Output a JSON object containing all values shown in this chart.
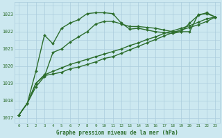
{
  "title": "Graphe pression niveau de la mer (hPa)",
  "background_color": "#cce8f0",
  "grid_color": "#aaccdd",
  "line_color": "#2d6e2d",
  "xlim": [
    -0.5,
    23.5
  ],
  "ylim": [
    1016.7,
    1023.7
  ],
  "yticks": [
    1017,
    1018,
    1019,
    1020,
    1021,
    1022,
    1023
  ],
  "xticks": [
    0,
    1,
    2,
    3,
    4,
    5,
    6,
    7,
    8,
    9,
    10,
    11,
    12,
    13,
    14,
    15,
    16,
    17,
    18,
    19,
    20,
    21,
    22,
    23
  ],
  "series": [
    {
      "x": [
        0,
        1,
        2,
        3,
        4,
        5,
        6,
        7,
        8,
        9,
        10,
        11,
        12,
        13,
        14,
        15,
        16,
        17,
        18,
        19,
        20,
        21,
        22,
        23
      ],
      "y": [
        1017.15,
        1017.85,
        1019.7,
        1021.8,
        1021.3,
        1022.2,
        1022.5,
        1022.7,
        1023.05,
        1023.1,
        1023.1,
        1023.05,
        1022.5,
        1022.15,
        1022.2,
        1022.1,
        1022.0,
        1021.95,
        1021.9,
        1022.0,
        1022.5,
        1022.95,
        1023.1,
        1022.85
      ],
      "marker": "D",
      "markersize": 2.0,
      "linewidth": 1.0
    },
    {
      "x": [
        0,
        1,
        2,
        3,
        4,
        5,
        6,
        7,
        8,
        9,
        10,
        11,
        12,
        13,
        14,
        15,
        16,
        17,
        18,
        19,
        20,
        21,
        22,
        23
      ],
      "y": [
        1017.15,
        1017.85,
        1018.8,
        1019.4,
        1020.8,
        1021.0,
        1021.4,
        1021.7,
        1022.0,
        1022.45,
        1022.6,
        1022.6,
        1022.45,
        1022.3,
        1022.3,
        1022.25,
        1022.2,
        1022.1,
        1022.0,
        1022.0,
        1022.0,
        1023.0,
        1023.05,
        1022.85
      ],
      "marker": "D",
      "markersize": 2.0,
      "linewidth": 1.0
    },
    {
      "x": [
        0,
        1,
        2,
        3,
        4,
        5,
        6,
        7,
        8,
        9,
        10,
        11,
        12,
        13,
        14,
        15,
        16,
        17,
        18,
        19,
        20,
        21,
        22,
        23
      ],
      "y": [
        1017.15,
        1017.85,
        1019.0,
        1019.45,
        1019.55,
        1019.65,
        1019.85,
        1019.95,
        1020.1,
        1020.25,
        1020.45,
        1020.55,
        1020.75,
        1020.95,
        1021.15,
        1021.35,
        1021.55,
        1021.75,
        1021.95,
        1022.1,
        1022.25,
        1022.4,
        1022.6,
        1022.85
      ],
      "marker": "D",
      "markersize": 2.0,
      "linewidth": 1.0
    },
    {
      "x": [
        0,
        1,
        2,
        3,
        4,
        5,
        6,
        7,
        8,
        9,
        10,
        11,
        12,
        13,
        14,
        15,
        16,
        17,
        18,
        19,
        20,
        21,
        22,
        23
      ],
      "y": [
        1017.15,
        1017.85,
        1019.0,
        1019.5,
        1019.7,
        1019.9,
        1020.1,
        1020.25,
        1020.4,
        1020.55,
        1020.7,
        1020.85,
        1021.0,
        1021.2,
        1021.35,
        1021.55,
        1021.7,
        1021.9,
        1022.05,
        1022.2,
        1022.35,
        1022.55,
        1022.75,
        1022.85
      ],
      "marker": "D",
      "markersize": 2.0,
      "linewidth": 1.0
    }
  ]
}
